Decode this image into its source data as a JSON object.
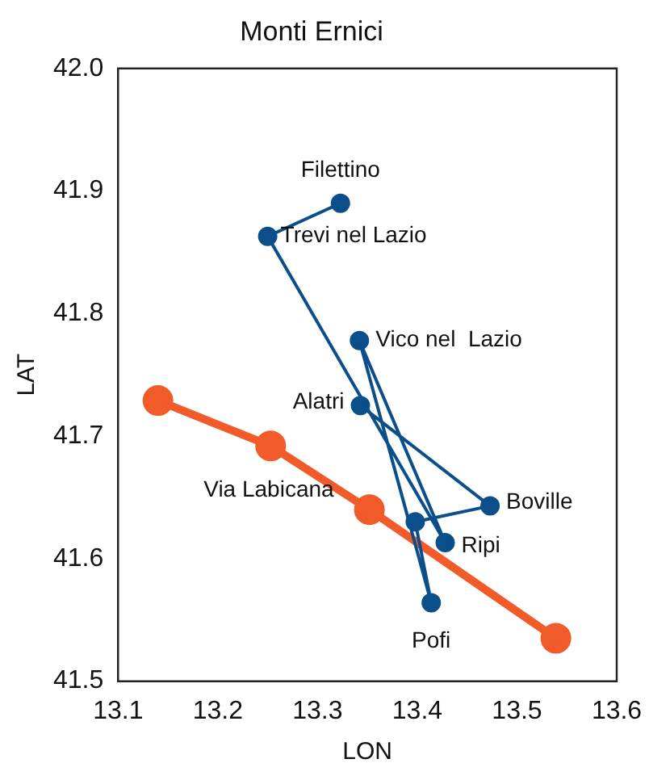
{
  "chart_data": {
    "type": "line",
    "title": "Monti Ernici",
    "xlabel": "LON",
    "ylabel": "LAT",
    "xlim": [
      13.1,
      13.6
    ],
    "xticks": [
      13.1,
      13.2,
      13.3,
      13.4,
      13.5,
      13.6
    ],
    "ylim": [
      41.5,
      42.0
    ],
    "yticks": [
      41.5,
      41.6,
      41.7,
      41.8,
      41.9,
      {
        "value": 42,
        "label": "42.0"
      }
    ],
    "grid": false,
    "legend": false,
    "marker": "circle",
    "line_style": "solid",
    "series": [
      {
        "color": "#0b4f8a",
        "x": [
          13.323,
          13.25,
          13.428,
          13.342,
          13.414,
          13.398,
          13.473,
          13.343
        ],
        "values": [
          41.89,
          41.863,
          41.613,
          41.778,
          41.564,
          41.63,
          41.643,
          41.725
        ]
      },
      {
        "name": "Via Labicana",
        "color": "#f15a29",
        "x": [
          13.14,
          13.253,
          13.352,
          13.539
        ],
        "values": [
          41.729,
          41.692,
          41.64,
          41.535
        ]
      }
    ],
    "annotations": [
      {
        "text": "Filettino",
        "x": 13.323,
        "y": 41.89
      },
      {
        "text": "Trevi nel Lazio",
        "x": 13.25,
        "y": 41.863
      },
      {
        "text": "Ripi",
        "x": 13.428,
        "y": 41.613
      },
      {
        "text": "Vico nel  Lazio",
        "x": 13.342,
        "y": 41.778
      },
      {
        "text": "Pofi",
        "x": 13.414,
        "y": 41.564
      },
      {
        "text": "Boville",
        "x": 13.473,
        "y": 41.643
      },
      {
        "text": "Alatri",
        "x": 13.343,
        "y": 41.725
      }
    ]
  }
}
